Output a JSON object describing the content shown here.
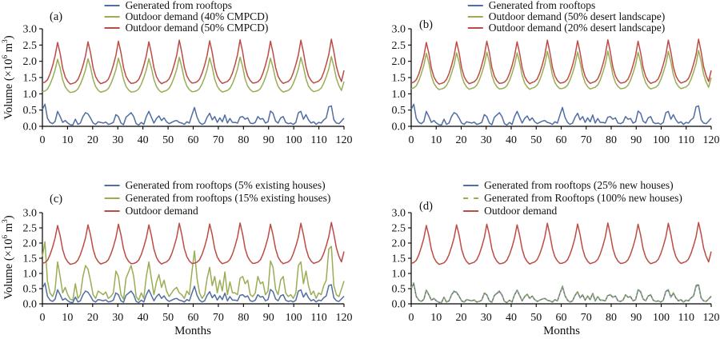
{
  "figure": {
    "xlabel": "Months",
    "ylabel": {
      "pre": "Volume (×10",
      "sup1": "6",
      "mid": " m",
      "sup2": "3",
      "post": ")"
    },
    "yticks": [
      "0.0",
      "0.5",
      "1.0",
      "1.5",
      "2.0",
      "2.5",
      "3.0"
    ],
    "xticks": [
      0,
      10,
      20,
      30,
      40,
      50,
      60,
      70,
      80,
      90,
      100,
      110,
      120
    ],
    "ylim": [
      0,
      3
    ],
    "xlim": [
      0,
      120
    ],
    "grid": false,
    "legend_position": "top-center",
    "colors": {
      "blue": "#506da4",
      "green": "#9aad54",
      "red": "#bd4b45",
      "axis": "#000000"
    }
  },
  "chart_data": {
    "type": "line",
    "x_unit": "month",
    "x_range": [
      1,
      120
    ],
    "shared_series": {
      "rooftop": [
        0.52,
        0.68,
        0.25,
        0.12,
        0.08,
        0.15,
        0.46,
        0.3,
        0.12,
        0.18,
        0.1,
        0.05,
        0.04,
        0.22,
        0.06,
        0.1,
        0.3,
        0.42,
        0.38,
        0.25,
        0.1,
        0.06,
        0.14,
        0.12,
        0.1,
        0.13,
        0.06,
        0.08,
        0.12,
        0.36,
        0.3,
        0.1,
        0.05,
        0.28,
        0.35,
        0.42,
        0.3,
        0.08,
        0.04,
        0.12,
        0.06,
        0.3,
        0.46,
        0.28,
        0.1,
        0.24,
        0.32,
        0.18,
        0.26,
        0.14,
        0.08,
        0.12,
        0.16,
        0.18,
        0.12,
        0.1,
        0.06,
        0.14,
        0.1,
        0.35,
        0.58,
        0.28,
        0.12,
        0.06,
        0.1,
        0.28,
        0.4,
        0.2,
        0.3,
        0.12,
        0.26,
        0.14,
        0.35,
        0.1,
        0.24,
        0.12,
        0.12,
        0.1,
        0.28,
        0.3,
        0.22,
        0.26,
        0.1,
        0.08,
        0.12,
        0.3,
        0.22,
        0.24,
        0.1,
        0.14,
        0.47,
        0.4,
        0.16,
        0.1,
        0.26,
        0.3,
        0.12,
        0.08,
        0.1,
        0.06,
        0.12,
        0.42,
        0.46,
        0.22,
        0.36,
        0.2,
        0.1,
        0.14,
        0.06,
        0.12,
        0.1,
        0.2,
        0.26,
        0.6,
        0.63,
        0.2,
        0.1,
        0.08,
        0.16,
        0.25
      ],
      "demand": [
        1.33,
        1.36,
        1.43,
        1.61,
        1.86,
        2.16,
        2.58,
        2.24,
        1.79,
        1.52,
        1.38,
        1.3,
        1.32,
        1.35,
        1.44,
        1.62,
        1.87,
        2.17,
        2.6,
        2.26,
        1.8,
        1.53,
        1.39,
        1.31,
        1.34,
        1.37,
        1.45,
        1.63,
        1.88,
        2.18,
        2.62,
        2.27,
        1.81,
        1.54,
        1.4,
        1.32,
        1.33,
        1.36,
        1.44,
        1.62,
        1.87,
        2.17,
        2.6,
        2.25,
        1.8,
        1.53,
        1.39,
        1.31,
        1.35,
        1.38,
        1.46,
        1.64,
        1.89,
        2.19,
        2.65,
        2.28,
        1.82,
        1.55,
        1.41,
        1.33,
        1.34,
        1.37,
        1.45,
        1.63,
        1.88,
        2.18,
        2.63,
        2.27,
        1.81,
        1.54,
        1.4,
        1.32,
        1.35,
        1.38,
        1.46,
        1.64,
        1.9,
        2.2,
        2.66,
        2.29,
        1.82,
        1.55,
        1.41,
        1.33,
        1.34,
        1.37,
        1.45,
        1.63,
        1.88,
        2.18,
        2.62,
        2.26,
        1.81,
        1.54,
        1.4,
        1.32,
        1.35,
        1.38,
        1.46,
        1.65,
        1.9,
        2.2,
        2.65,
        2.28,
        1.83,
        1.55,
        1.41,
        1.33,
        1.36,
        1.39,
        1.47,
        1.66,
        1.91,
        2.21,
        2.68,
        2.3,
        1.84,
        1.56,
        1.38,
        1.72
      ]
    },
    "charts": [
      {
        "id": "a",
        "panel_label": "(a)",
        "legend": [
          {
            "label": "Generated from rooftops",
            "color": "blue",
            "dash": false
          },
          {
            "label": "Outdoor demand (40% CMPCD)",
            "color": "green",
            "dash": false
          },
          {
            "label": "Outdoor demand (50% CMPCD)",
            "color": "red",
            "dash": false
          }
        ],
        "series": [
          {
            "name": "Generated from rooftops",
            "base": "rooftop",
            "scale": 1,
            "color": "blue",
            "dash": false
          },
          {
            "name": "Outdoor demand (40% CMPCD)",
            "base": "demand",
            "scale": 0.8,
            "color": "green",
            "dash": false
          },
          {
            "name": "Outdoor demand (50% CMPCD)",
            "base": "demand",
            "scale": 1,
            "color": "red",
            "dash": false
          }
        ]
      },
      {
        "id": "b",
        "panel_label": "(b)",
        "legend": [
          {
            "label": "Generated from rooftops",
            "color": "blue",
            "dash": false
          },
          {
            "label": "Outdoor demand (50% desert landscape)",
            "color": "green",
            "dash": false
          },
          {
            "label": "Outdoor demand (20% desert landscape)",
            "color": "red",
            "dash": false
          }
        ],
        "series": [
          {
            "name": "Generated from rooftops",
            "base": "rooftop",
            "scale": 1,
            "color": "blue",
            "dash": false
          },
          {
            "name": "Outdoor demand (50% desert landscape)",
            "base": "demand",
            "scale": 0.87,
            "color": "green",
            "dash": false
          },
          {
            "name": "Outdoor demand (20% desert landscape)",
            "base": "demand",
            "scale": 1,
            "color": "red",
            "dash": false
          }
        ]
      },
      {
        "id": "c",
        "panel_label": "(c)",
        "legend": [
          {
            "label": "Generated from rooftops (5% existing houses)",
            "color": "blue",
            "dash": false
          },
          {
            "label": "Generated from rooftops (15% existing houses)",
            "color": "green",
            "dash": false
          },
          {
            "label": "Outdoor demand",
            "color": "red",
            "dash": false
          }
        ],
        "series": [
          {
            "name": "Generated from rooftops (5% existing houses)",
            "base": "rooftop",
            "scale": 1,
            "color": "blue",
            "dash": false
          },
          {
            "name": "Generated from rooftops (15% existing houses)",
            "base": "rooftop",
            "scale": 3,
            "color": "green",
            "dash": false
          },
          {
            "name": "Outdoor demand",
            "base": "demand",
            "scale": 1,
            "color": "red",
            "dash": false
          }
        ]
      },
      {
        "id": "d",
        "panel_label": "(d)",
        "legend": [
          {
            "label": "Generated from rooftops (25% new houses)",
            "color": "blue",
            "dash": false
          },
          {
            "label": "Generated from Rooftops (100% new houses)",
            "color": "green",
            "dash": true
          },
          {
            "label": "Outdoor demand",
            "color": "red",
            "dash": false
          }
        ],
        "series": [
          {
            "name": "Generated from rooftops (25% new houses)",
            "base": "rooftop",
            "scale": 0.98,
            "color": "blue",
            "dash": false
          },
          {
            "name": "Generated from Rooftops (100% new houses)",
            "base": "rooftop",
            "scale": 1.02,
            "color": "green",
            "dash": true
          },
          {
            "name": "Outdoor demand",
            "base": "demand",
            "scale": 1,
            "color": "red",
            "dash": false
          }
        ]
      }
    ]
  }
}
